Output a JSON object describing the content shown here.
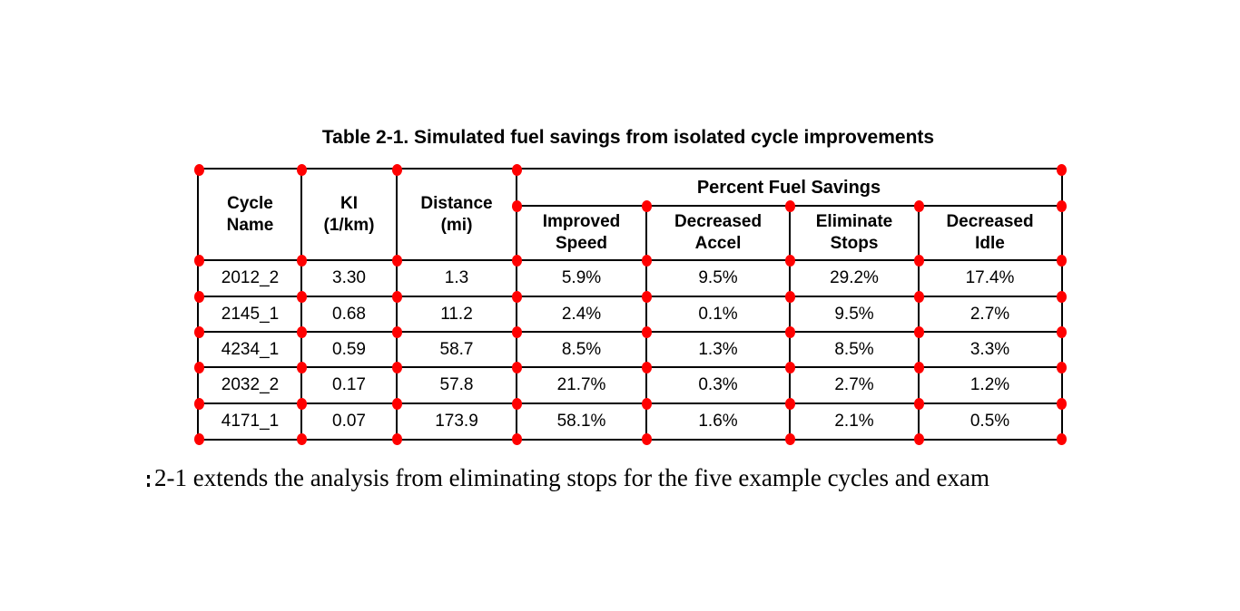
{
  "title": "Table 2-1. Simulated fuel savings from isolated cycle improvements",
  "table": {
    "corner_marker": {
      "name": "red-dot",
      "color": "#ff0000"
    },
    "header": {
      "cycle_name": {
        "line1": "Cycle",
        "line2": "Name"
      },
      "ki": {
        "line1": "KI",
        "line2": "(1/km)"
      },
      "distance": {
        "line1": "Distance",
        "line2": "(mi)"
      },
      "group": "Percent Fuel Savings",
      "improved_speed": {
        "line1": "Improved",
        "line2": "Speed"
      },
      "decreased_accel": {
        "line1": "Decreased",
        "line2": "Accel"
      },
      "eliminate_stops": {
        "line1": "Eliminate",
        "line2": "Stops"
      },
      "decreased_idle": {
        "line1": "Decreased",
        "line2": "Idle"
      }
    },
    "rows": [
      {
        "cycle_name": "2012_2",
        "ki": "3.30",
        "distance": "1.3",
        "improved_speed": "5.9%",
        "decreased_accel": "9.5%",
        "eliminate_stops": "29.2%",
        "decreased_idle": "17.4%"
      },
      {
        "cycle_name": "2145_1",
        "ki": "0.68",
        "distance": "11.2",
        "improved_speed": "2.4%",
        "decreased_accel": "0.1%",
        "eliminate_stops": "9.5%",
        "decreased_idle": "2.7%"
      },
      {
        "cycle_name": "4234_1",
        "ki": "0.59",
        "distance": "58.7",
        "improved_speed": "8.5%",
        "decreased_accel": "1.3%",
        "eliminate_stops": "8.5%",
        "decreased_idle": "3.3%"
      },
      {
        "cycle_name": "2032_2",
        "ki": "0.17",
        "distance": "57.8",
        "improved_speed": "21.7%",
        "decreased_accel": "0.3%",
        "eliminate_stops": "2.7%",
        "decreased_idle": "1.2%"
      },
      {
        "cycle_name": "4171_1",
        "ki": "0.07",
        "distance": "173.9",
        "improved_speed": "58.1%",
        "decreased_accel": "1.6%",
        "eliminate_stops": "2.1%",
        "decreased_idle": "0.5%"
      }
    ]
  },
  "body_text": "2-1 extends the analysis from eliminating stops for the five example cycles and exam"
}
